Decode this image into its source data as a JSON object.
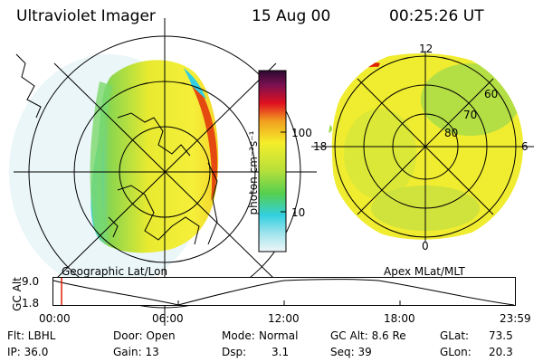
{
  "header": {
    "title": "Ultraviolet Imager",
    "date": "15 Aug 00",
    "time": "00:25:26 UT"
  },
  "left_panel": {
    "caption": "Geographic Lat/Lon"
  },
  "right_panel": {
    "caption": "Apex MLat/MLT",
    "mlt_labels": {
      "top": "12",
      "left": "18",
      "right": "6",
      "bottom": "0"
    },
    "lat_labels": [
      "60",
      "70",
      "80"
    ]
  },
  "colorbar": {
    "unit_label": "photon cm⁻²s⁻¹",
    "ticks": [
      "100",
      "10"
    ],
    "scale": "log"
  },
  "timeline": {
    "ylabel": "GC Alt",
    "ytick_top": "9.0",
    "ytick_bottom": "1.8",
    "xticks": [
      "00:00",
      "06:00",
      "12:00",
      "18:00",
      "23:59"
    ],
    "current_time_fraction": 0.0177
  },
  "status": {
    "filter": "Flt: LBHL",
    "door": "Door: Open",
    "mode_label": "Mode:",
    "mode_value": "Normal",
    "gc_alt": "GC Alt: 8.6 Re",
    "glat_label": "GLat:",
    "glat_value": "73.5",
    "ip": "IP: 36.0",
    "gain": "Gain: 13",
    "dsp_label": "Dsp:",
    "dsp_value": "3.1",
    "seq": "Seq: 39",
    "glon_label": "GLon:",
    "glon_value": "20.3"
  },
  "colors": {
    "accent_red": "#e02000",
    "yellow": "#f4ee2a",
    "green": "#9ed84a",
    "cyan": "#33cfe0"
  }
}
